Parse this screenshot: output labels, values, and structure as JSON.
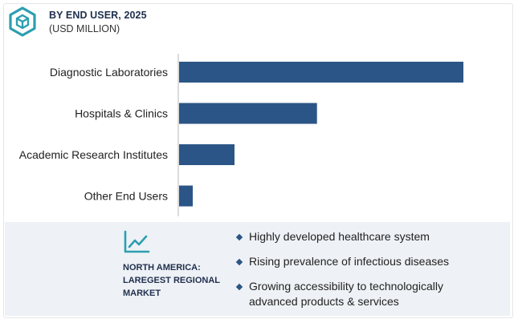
{
  "header": {
    "title": "BY END USER, 2025",
    "subtitle": "(USD MILLION)",
    "logo_icon": "hexagon-cube-icon"
  },
  "colors": {
    "bar": "#2b5586",
    "accent": "#2b9fb0",
    "footer_bg": "#eef1f5"
  },
  "chart_data": {
    "type": "bar",
    "orientation": "horizontal",
    "categories": [
      "Diagnostic Laboratories",
      "Hospitals & Clinics",
      "Academic Research Institutes",
      "Other End Users"
    ],
    "values": [
      100,
      48.5,
      19.5,
      4.8
    ],
    "xlim": [
      0,
      100
    ],
    "grid": false,
    "xlabel": "",
    "ylabel": ""
  },
  "footer": {
    "trend_icon": "line-chart-icon",
    "region_lines": [
      "NORTH AMERICA:",
      "LAREGEST REGIONAL",
      "MARKET"
    ],
    "bullets": [
      [
        "Highly developed  healthcare system"
      ],
      [
        "Rising prevalence of infectious diseases"
      ],
      [
        "Growing accessibility to technologically",
        "advanced products & services"
      ]
    ]
  }
}
